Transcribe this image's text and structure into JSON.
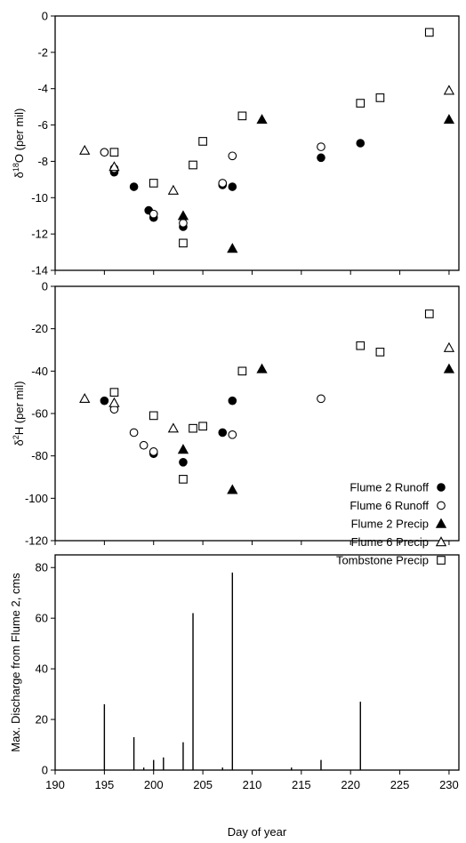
{
  "chart_data": [
    {
      "type": "scatter",
      "ylabel_prefix": "δ",
      "ylabel_sup": "18",
      "ylabel_suffix": "O (per mil)",
      "ylim": [
        -14,
        0
      ],
      "yticks": [
        -14,
        -12,
        -10,
        -8,
        -6,
        -4,
        -2,
        0
      ],
      "xlim": [
        190,
        231
      ],
      "series": [
        {
          "name": "Flume 2 Runoff",
          "marker": "filled-circle",
          "x": [
            196,
            198,
            199.5,
            200,
            203,
            207,
            208,
            217,
            221
          ],
          "y": [
            -8.6,
            -9.4,
            -10.7,
            -11.1,
            -11.6,
            -9.3,
            -9.4,
            -7.8,
            -7.0
          ]
        },
        {
          "name": "Flume 6 Runoff",
          "marker": "open-circle",
          "x": [
            195,
            196,
            200,
            203,
            207,
            208,
            217
          ],
          "y": [
            -7.5,
            -8.4,
            -10.9,
            -11.4,
            -9.2,
            -7.7,
            -7.2
          ]
        },
        {
          "name": "Flume 2 Precip",
          "marker": "filled-triangle",
          "x": [
            203,
            208,
            211,
            230
          ],
          "y": [
            -11.0,
            -12.8,
            -5.7,
            -5.7
          ]
        },
        {
          "name": "Flume 6 Precip",
          "marker": "open-triangle",
          "x": [
            193,
            196,
            202,
            230
          ],
          "y": [
            -7.4,
            -8.3,
            -9.6,
            -4.1
          ]
        },
        {
          "name": "Tombstone Precip",
          "marker": "open-square",
          "x": [
            196,
            200,
            203,
            204,
            205,
            209,
            221,
            223,
            228
          ],
          "y": [
            -7.5,
            -9.2,
            -12.5,
            -8.2,
            -6.9,
            -5.5,
            -4.8,
            -4.5,
            -0.9
          ]
        }
      ]
    },
    {
      "type": "scatter",
      "ylabel_prefix": "δ",
      "ylabel_sup": "2",
      "ylabel_suffix": "H (per mil)",
      "ylim": [
        -120,
        0
      ],
      "yticks": [
        -120,
        -100,
        -80,
        -60,
        -40,
        -20,
        0
      ],
      "xlim": [
        190,
        231
      ],
      "legend": {
        "position": "lower-right",
        "entries": [
          "Flume 2 Runoff",
          "Flume 6 Runoff",
          "Flume 2 Precip",
          "Flume 6 Precip",
          "Tombstone Precip"
        ]
      },
      "series": [
        {
          "name": "Flume 2 Runoff",
          "marker": "filled-circle",
          "x": [
            195,
            200,
            203,
            207,
            208
          ],
          "y": [
            -54,
            -79,
            -83,
            -69,
            -54
          ]
        },
        {
          "name": "Flume 6 Runoff",
          "marker": "open-circle",
          "x": [
            196,
            198,
            199,
            200,
            208,
            217
          ],
          "y": [
            -58,
            -69,
            -75,
            -78,
            -70,
            -53
          ]
        },
        {
          "name": "Flume 2 Precip",
          "marker": "filled-triangle",
          "x": [
            203,
            208,
            211,
            230
          ],
          "y": [
            -77,
            -96,
            -39,
            -39
          ]
        },
        {
          "name": "Flume 6 Precip",
          "marker": "open-triangle",
          "x": [
            193,
            196,
            202,
            230
          ],
          "y": [
            -53,
            -55,
            -67,
            -29
          ]
        },
        {
          "name": "Tombstone Precip",
          "marker": "open-square",
          "x": [
            196,
            200,
            203,
            204,
            205,
            209,
            221,
            223,
            228
          ],
          "y": [
            -50,
            -61,
            -91,
            -67,
            -66,
            -40,
            -28,
            -31,
            -13
          ]
        }
      ]
    },
    {
      "type": "bar",
      "ylabel": "Max. Discharge from Flume 2, cms",
      "xlabel": "Day of year",
      "ylim": [
        0,
        85
      ],
      "yticks": [
        0,
        20,
        40,
        60,
        80
      ],
      "xlim": [
        190,
        231
      ],
      "xticks": [
        190,
        195,
        200,
        205,
        210,
        215,
        220,
        225,
        230
      ],
      "x": [
        195,
        198,
        199,
        200,
        201,
        203,
        204,
        207,
        208,
        214,
        217,
        221
      ],
      "values": [
        26,
        13,
        1,
        4,
        5,
        11,
        62,
        1,
        78,
        1,
        4,
        27
      ]
    }
  ]
}
